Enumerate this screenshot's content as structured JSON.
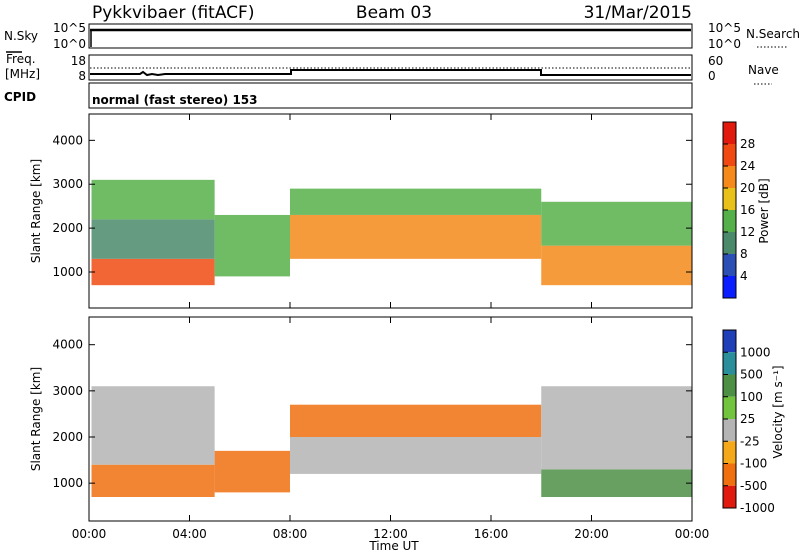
{
  "header": {
    "station": "Pykkvibaer (fitACF)",
    "beam": "Beam 03",
    "date": "31/Mar/2015"
  },
  "strip_labels": {
    "nsky": "N.Sky",
    "nsky_hi": "10^5",
    "nsky_lo": "10^0",
    "nsearch": "N.Search",
    "nsearch_hi": "10^5",
    "nsearch_lo": "10^0",
    "freq_line1": "Freq.",
    "freq_line2": "[MHz]",
    "freq_hi": "18",
    "freq_lo": "8",
    "nave": "Nave",
    "nave_hi": "60",
    "nave_lo": "0",
    "cpid": "CPID",
    "cpid_value": "normal (fast stereo) 153"
  },
  "axes": {
    "xlabel": "Time UT",
    "ylabel": "Slant Range [km]",
    "x_ticks": [
      "00:00",
      "04:00",
      "08:00",
      "12:00",
      "16:00",
      "20:00",
      "00:00"
    ],
    "y_ticks": [
      "1000",
      "2000",
      "3000",
      "4000"
    ]
  },
  "colorbars": {
    "power": {
      "label": "Power [dB]",
      "ticks": [
        "4",
        "8",
        "12",
        "16",
        "20",
        "24",
        "28"
      ],
      "colors": [
        "#0a1eff",
        "#2c4fb5",
        "#4a8a6a",
        "#56b04a",
        "#e8c21a",
        "#f58a1a",
        "#f04a12",
        "#e21a0e"
      ]
    },
    "velocity": {
      "label": "Velocity [m s⁻¹]",
      "ticks": [
        "1000",
        "500",
        "100",
        "25",
        "-25",
        "-100",
        "-500",
        "-1000"
      ],
      "colors": [
        "#1e3fb8",
        "#2a8f9a",
        "#4d8f45",
        "#72c43e",
        "#b4b4b4",
        "#f5a81a",
        "#f07010",
        "#e01a0e"
      ]
    }
  },
  "chart_data": [
    {
      "type": "line",
      "title": "N.Sky / N.Search",
      "x": [
        "00:00",
        "04:00",
        "08:00",
        "12:00",
        "16:00",
        "20:00",
        "24:00"
      ],
      "series": [
        {
          "name": "N.Sky",
          "values": [
            13000,
            13000,
            13000,
            13000,
            13000,
            13000,
            13000
          ]
        },
        {
          "name": "N.Search",
          "values": [
            13000,
            13000,
            13000,
            13000,
            13000,
            13000,
            13000
          ]
        }
      ],
      "ylim": [
        1,
        100000
      ]
    },
    {
      "type": "line",
      "title": "Freq. [MHz] / Nave",
      "x": [
        "00:00",
        "02:30",
        "03:30",
        "08:00",
        "18:00",
        "24:00"
      ],
      "series": [
        {
          "name": "Freq. [MHz]",
          "values": [
            9.5,
            9.5,
            9.5,
            11.2,
            9.5,
            9.5
          ]
        },
        {
          "name": "Nave",
          "values": [
            45,
            45,
            45,
            45,
            45,
            45
          ]
        }
      ],
      "ylim": [
        8,
        18
      ]
    },
    {
      "type": "heatmap",
      "title": "Power [dB]",
      "xlabel": "Time UT",
      "ylabel": "Slant Range [km]",
      "xlim": [
        0,
        24
      ],
      "ylim": [
        180,
        4600
      ],
      "scale_label": "Power [dB]",
      "bands": [
        {
          "t0": 0.1,
          "t1": 5.0,
          "r0": 700,
          "r1": 1300,
          "value": 26
        },
        {
          "t0": 0.1,
          "t1": 5.0,
          "r0": 1300,
          "r1": 2200,
          "value": 10
        },
        {
          "t0": 0.1,
          "t1": 5.0,
          "r0": 2200,
          "r1": 3100,
          "value": 14
        },
        {
          "t0": 5.0,
          "t1": 8.0,
          "r0": 900,
          "r1": 2300,
          "value": 14
        },
        {
          "t0": 8.0,
          "t1": 18.0,
          "r0": 1300,
          "r1": 2300,
          "value": 24
        },
        {
          "t0": 8.0,
          "t1": 18.0,
          "r0": 2300,
          "r1": 2900,
          "value": 14
        },
        {
          "t0": 18.0,
          "t1": 24.0,
          "r0": 700,
          "r1": 1600,
          "value": 22
        },
        {
          "t0": 18.0,
          "t1": 24.0,
          "r0": 1600,
          "r1": 2600,
          "value": 14
        }
      ]
    },
    {
      "type": "heatmap",
      "title": "Velocity [m s⁻¹]",
      "xlabel": "Time UT",
      "ylabel": "Slant Range [km]",
      "xlim": [
        0,
        24
      ],
      "ylim": [
        180,
        4600
      ],
      "scale_label": "Velocity [m s⁻¹]",
      "bands": [
        {
          "t0": 0.1,
          "t1": 5.0,
          "r0": 700,
          "r1": 1400,
          "value": -200
        },
        {
          "t0": 0.1,
          "t1": 5.0,
          "r0": 1400,
          "r1": 3100,
          "value": 0
        },
        {
          "t0": 5.0,
          "t1": 8.0,
          "r0": 800,
          "r1": 1700,
          "value": -300
        },
        {
          "t0": 8.0,
          "t1": 18.0,
          "r0": 1200,
          "r1": 2000,
          "value": 0
        },
        {
          "t0": 8.0,
          "t1": 18.0,
          "r0": 2000,
          "r1": 2700,
          "value": -250
        },
        {
          "t0": 18.0,
          "t1": 24.0,
          "r0": 700,
          "r1": 1300,
          "value": 300
        },
        {
          "t0": 18.0,
          "t1": 24.0,
          "r0": 1300,
          "r1": 3100,
          "value": 0
        }
      ]
    }
  ]
}
